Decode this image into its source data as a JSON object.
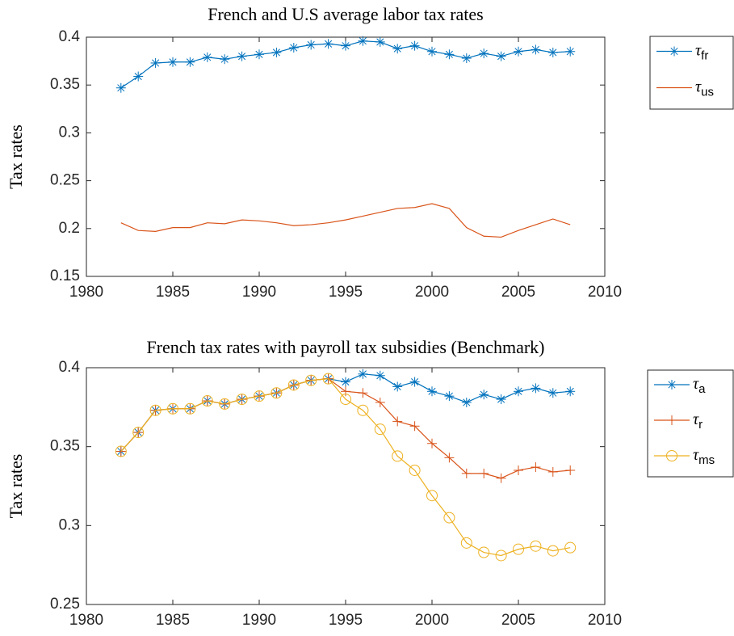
{
  "chart_data": [
    {
      "type": "line",
      "title": "French and U.S average labor tax rates",
      "ylabel": "Tax rates",
      "x": [
        1982,
        1983,
        1984,
        1985,
        1986,
        1987,
        1988,
        1989,
        1990,
        1991,
        1992,
        1993,
        1994,
        1995,
        1996,
        1997,
        1998,
        1999,
        2000,
        2001,
        2002,
        2003,
        2004,
        2005,
        2006,
        2007,
        2008
      ],
      "xlim": [
        1980,
        2010
      ],
      "xticks": [
        1980,
        1985,
        1990,
        1995,
        2000,
        2005,
        2010
      ],
      "ylim": [
        0.15,
        0.4
      ],
      "yticks": [
        0.15,
        0.2,
        0.25,
        0.3,
        0.35,
        0.4
      ],
      "series": [
        {
          "name": "τfr",
          "color": "#0072bd",
          "marker": "asterisk",
          "values": [
            0.347,
            0.359,
            0.373,
            0.374,
            0.374,
            0.379,
            0.377,
            0.38,
            0.382,
            0.384,
            0.389,
            0.392,
            0.393,
            0.391,
            0.396,
            0.395,
            0.388,
            0.391,
            0.385,
            0.382,
            0.378,
            0.383,
            0.38,
            0.385,
            0.387,
            0.384,
            0.385
          ]
        },
        {
          "name": "τus",
          "color": "#d95319",
          "marker": "none",
          "values": [
            0.206,
            0.198,
            0.197,
            0.201,
            0.201,
            0.206,
            0.205,
            0.209,
            0.208,
            0.206,
            0.203,
            0.204,
            0.206,
            0.209,
            0.213,
            0.217,
            0.221,
            0.222,
            0.226,
            0.221,
            0.201,
            0.192,
            0.191,
            0.198,
            0.204,
            0.21,
            0.204
          ]
        }
      ]
    },
    {
      "type": "line",
      "title": "French tax rates with payroll tax subsidies (Benchmark)",
      "ylabel": "Tax rates",
      "x": [
        1982,
        1983,
        1984,
        1985,
        1986,
        1987,
        1988,
        1989,
        1990,
        1991,
        1992,
        1993,
        1994,
        1995,
        1996,
        1997,
        1998,
        1999,
        2000,
        2001,
        2002,
        2003,
        2004,
        2005,
        2006,
        2007,
        2008
      ],
      "xlim": [
        1980,
        2010
      ],
      "xticks": [
        1980,
        1985,
        1990,
        1995,
        2000,
        2005,
        2010
      ],
      "ylim": [
        0.25,
        0.4
      ],
      "yticks": [
        0.25,
        0.3,
        0.35,
        0.4
      ],
      "series": [
        {
          "name": "τa",
          "color": "#0072bd",
          "marker": "asterisk",
          "values": [
            0.347,
            0.359,
            0.373,
            0.374,
            0.374,
            0.379,
            0.377,
            0.38,
            0.382,
            0.384,
            0.389,
            0.392,
            0.393,
            0.391,
            0.396,
            0.395,
            0.388,
            0.391,
            0.385,
            0.382,
            0.378,
            0.383,
            0.38,
            0.385,
            0.387,
            0.384,
            0.385
          ]
        },
        {
          "name": "τr",
          "color": "#d95319",
          "marker": "plus",
          "values": [
            0.347,
            0.359,
            0.373,
            0.374,
            0.374,
            0.379,
            0.377,
            0.38,
            0.382,
            0.384,
            0.389,
            0.392,
            0.393,
            0.385,
            0.384,
            0.378,
            0.366,
            0.363,
            0.352,
            0.343,
            0.333,
            0.333,
            0.33,
            0.335,
            0.337,
            0.334,
            0.335
          ]
        },
        {
          "name": "τms",
          "color": "#edb120",
          "marker": "circle",
          "values": [
            0.347,
            0.359,
            0.373,
            0.374,
            0.374,
            0.379,
            0.377,
            0.38,
            0.382,
            0.384,
            0.389,
            0.392,
            0.393,
            0.38,
            0.373,
            0.361,
            0.344,
            0.335,
            0.319,
            0.305,
            0.289,
            0.283,
            0.281,
            0.285,
            0.287,
            0.284,
            0.286
          ]
        }
      ]
    }
  ]
}
